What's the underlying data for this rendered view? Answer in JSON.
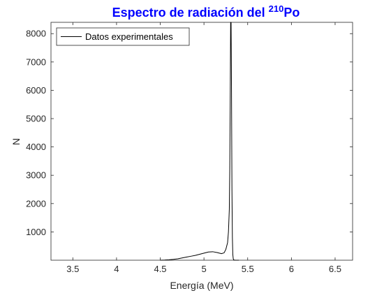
{
  "chart_data": {
    "type": "line",
    "title": {
      "prefix": "Espectro de radiación del ",
      "superscript": "210",
      "suffix": "Po"
    },
    "xlabel": "Energía (MeV)",
    "ylabel": "N",
    "xlim": [
      3.25,
      6.7
    ],
    "ylim": [
      0,
      8400
    ],
    "xticks": [
      3.5,
      4,
      4.5,
      5,
      5.5,
      6,
      6.5
    ],
    "xtick_labels": [
      "3.5",
      "4",
      "4.5",
      "5",
      "5.5",
      "6",
      "6.5"
    ],
    "yticks": [
      1000,
      2000,
      3000,
      4000,
      5000,
      6000,
      7000,
      8000
    ],
    "ytick_labels": [
      "1000",
      "2000",
      "3000",
      "4000",
      "5000",
      "6000",
      "7000",
      "8000"
    ],
    "grid": false,
    "legend_position": "top-left",
    "series": [
      {
        "name": "Datos experimentales",
        "color": "#000000",
        "x": [
          4.5,
          4.55,
          4.6,
          4.65,
          4.7,
          4.75,
          4.8,
          4.85,
          4.9,
          4.95,
          5.0,
          5.05,
          5.1,
          5.15,
          5.2,
          5.23,
          5.25,
          5.27,
          5.28,
          5.29,
          5.295,
          5.3,
          5.305,
          5.31,
          5.315,
          5.32,
          5.325,
          5.33,
          5.335,
          5.34,
          5.36,
          5.4
        ],
        "y": [
          0,
          5,
          15,
          30,
          50,
          80,
          110,
          140,
          170,
          210,
          250,
          290,
          300,
          270,
          230,
          260,
          380,
          620,
          1000,
          1800,
          3200,
          5500,
          8400,
          8400,
          6000,
          2500,
          800,
          200,
          50,
          10,
          0,
          0
        ]
      }
    ]
  }
}
